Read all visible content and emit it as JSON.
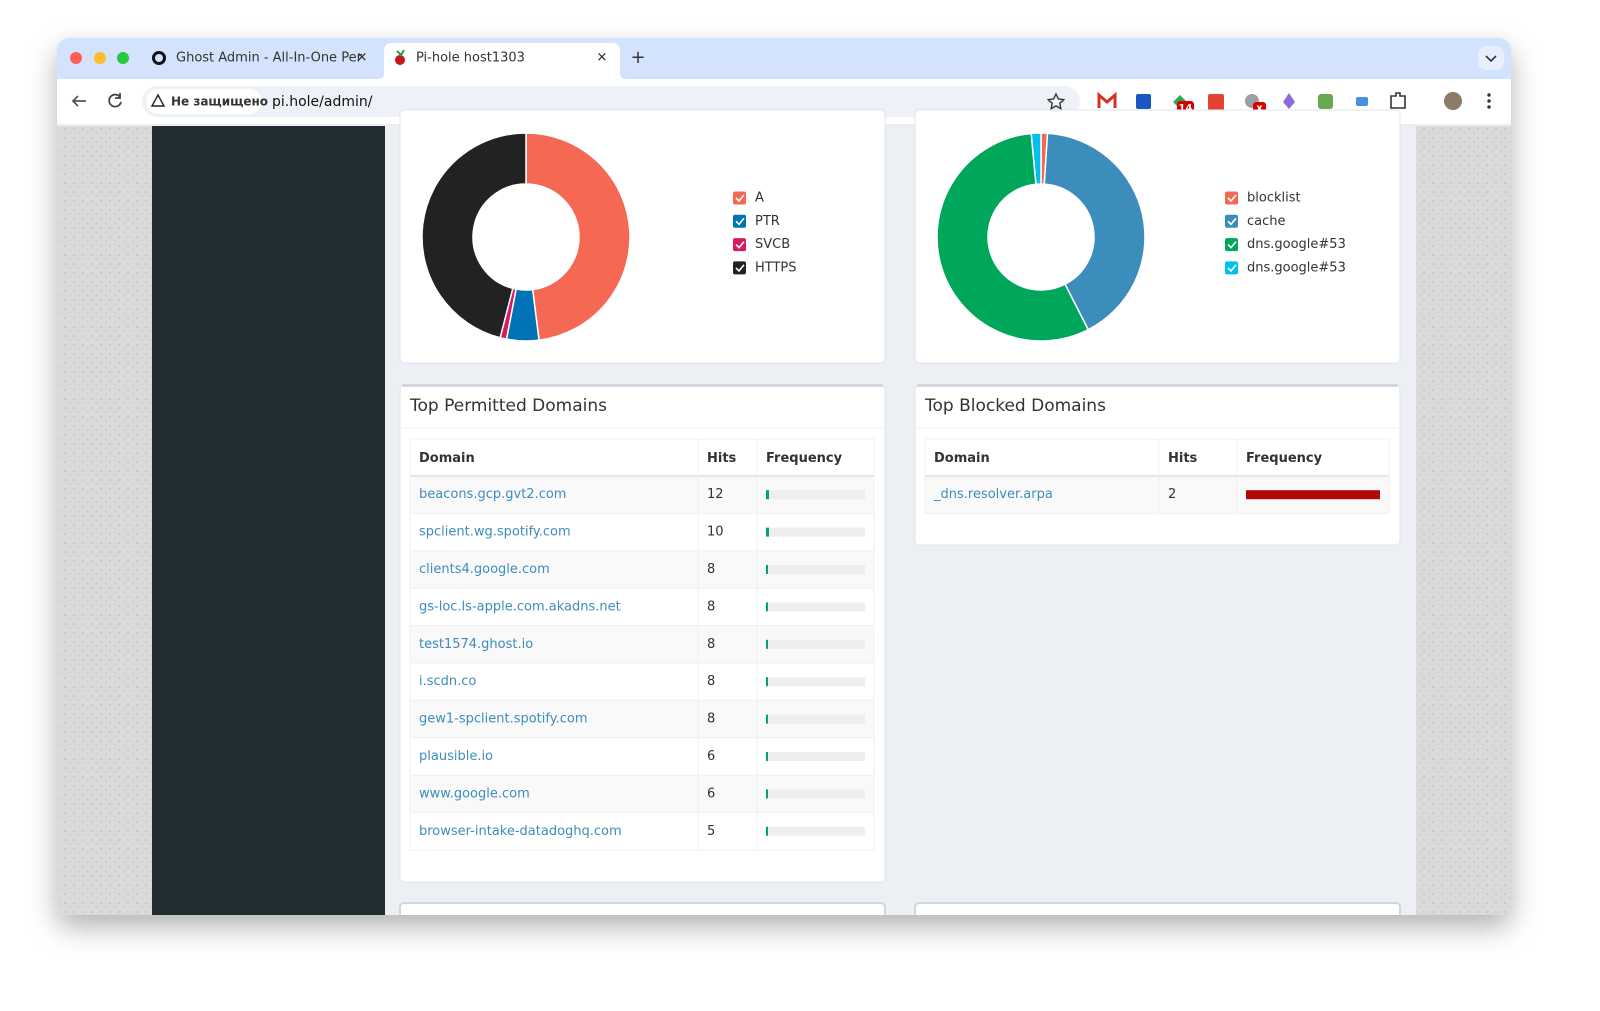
{
  "browser": {
    "tabs": [
      "Ghost Admin - All-In-One Per",
      "Pi-hole host1303"
    ],
    "security_label": "Не защищено",
    "url": "pi.hole/admin/",
    "badges": [
      "14",
      "x"
    ]
  },
  "charts": [
    {
      "type": "doughnut",
      "legend": [
        {
          "name": "A",
          "color": "#f56954",
          "value": 48
        },
        {
          "name": "PTR",
          "color": "#0073b7",
          "value": 5
        },
        {
          "name": "SVCB",
          "color": "#d81b60",
          "value": 1
        },
        {
          "name": "HTTPS",
          "color": "#222222",
          "value": 46
        }
      ]
    },
    {
      "type": "doughnut",
      "legend": [
        {
          "name": "blocklist",
          "color": "#f56954",
          "value": 1
        },
        {
          "name": "cache",
          "color": "#3c8dbc",
          "value": 41.5
        },
        {
          "name": "dns.google#53",
          "color": "#00a65a",
          "value": 56
        },
        {
          "name": "dns.google#53",
          "color": "#00c0ef",
          "value": 1.5
        }
      ]
    }
  ],
  "top_permitted": {
    "title": "Top Permitted Domains",
    "columns": [
      "Domain",
      "Hits",
      "Frequency"
    ],
    "bar_color": "#00a65a",
    "rows": [
      {
        "domain": "beacons.gcp.gvt2.com",
        "hits": 12,
        "frequency": 3
      },
      {
        "domain": "spclient.wg.spotify.com",
        "hits": 10,
        "frequency": 3
      },
      {
        "domain": "clients4.google.com",
        "hits": 8,
        "frequency": 2
      },
      {
        "domain": "gs-loc.ls-apple.com.akadns.net",
        "hits": 8,
        "frequency": 2
      },
      {
        "domain": "test1574.ghost.io",
        "hits": 8,
        "frequency": 2
      },
      {
        "domain": "i.scdn.co",
        "hits": 8,
        "frequency": 2
      },
      {
        "domain": "gew1-spclient.spotify.com",
        "hits": 8,
        "frequency": 2
      },
      {
        "domain": "plausible.io",
        "hits": 6,
        "frequency": 2
      },
      {
        "domain": "www.google.com",
        "hits": 6,
        "frequency": 2
      },
      {
        "domain": "browser-intake-datadoghq.com",
        "hits": 5,
        "frequency": 2
      }
    ]
  },
  "top_blocked": {
    "title": "Top Blocked Domains",
    "columns": [
      "Domain",
      "Hits",
      "Frequency"
    ],
    "bar_color": "#b30808",
    "rows": [
      {
        "domain": "_dns.resolver.arpa",
        "hits": 2,
        "frequency": 100
      }
    ]
  }
}
